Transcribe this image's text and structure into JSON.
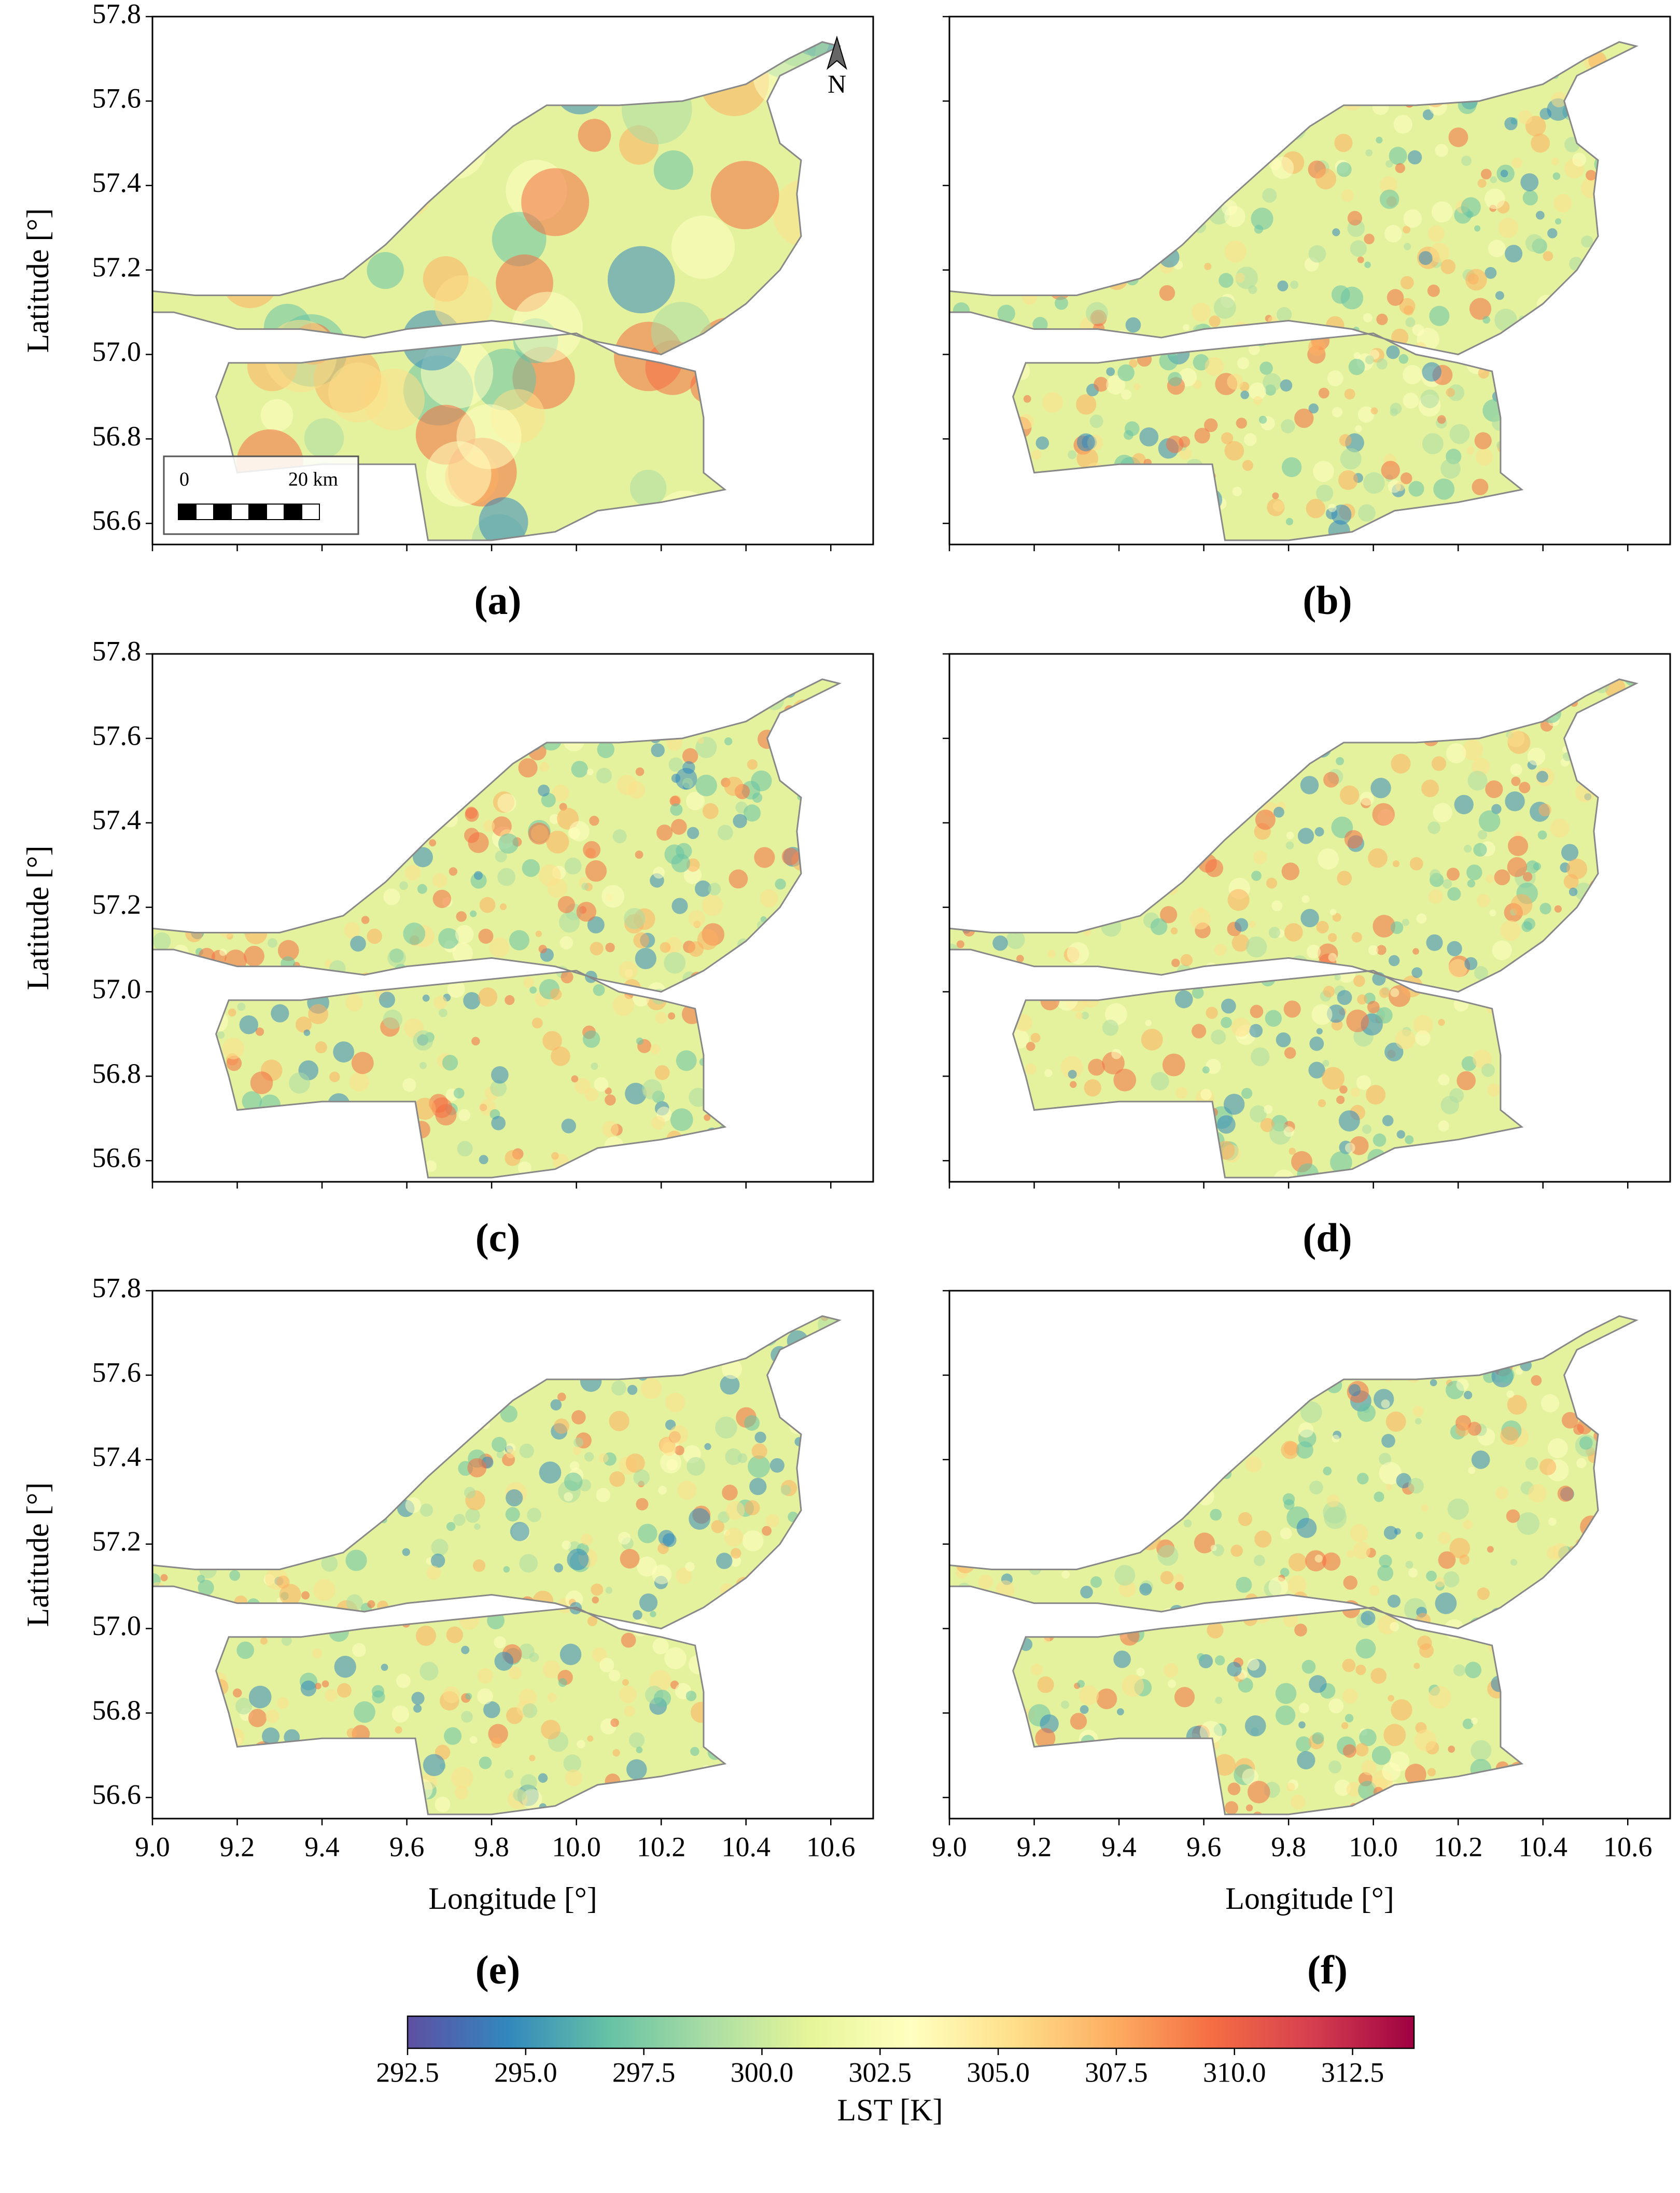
{
  "chart_data": [
    {
      "type": "map",
      "panel_label": "(a)",
      "xlim": [
        9.0,
        10.7
      ],
      "ylim": [
        56.55,
        57.8
      ],
      "xticks": [
        9.0,
        9.2,
        9.4,
        9.6,
        9.8,
        10.0,
        10.2,
        10.4,
        10.6
      ],
      "yticks": [
        {
          "value": 56.6,
          "label": "56.6"
        },
        {
          "value": 56.8,
          "label": "56.8"
        },
        {
          "value": 57.0,
          "label": "57.0"
        },
        {
          "value": 57.2,
          "label": "57.2"
        },
        {
          "value": 57.4,
          "label": "57.4"
        },
        {
          "value": 57.6,
          "label": "57.6"
        },
        {
          "value": 57.8,
          "label": "57.8"
        }
      ],
      "ylabel": "Latitude [°]",
      "scalebar_labels": [
        "0",
        "20 km"
      ],
      "north_label": "N"
    },
    {
      "type": "map",
      "panel_label": "(b)",
      "xlim": [
        9.0,
        10.7
      ],
      "ylim": [
        56.55,
        57.8
      ],
      "xticks": [
        9.0,
        9.2,
        9.4,
        9.6,
        9.8,
        10.0,
        10.2,
        10.4,
        10.6
      ],
      "yticks": [
        56.6,
        56.8,
        57.0,
        57.2,
        57.4,
        57.6,
        57.8
      ]
    },
    {
      "type": "map",
      "panel_label": "(c)",
      "xlim": [
        9.0,
        10.7
      ],
      "ylim": [
        56.55,
        57.8
      ],
      "xticks": [
        9.0,
        9.2,
        9.4,
        9.6,
        9.8,
        10.0,
        10.2,
        10.4,
        10.6
      ],
      "yticks": [
        {
          "value": 56.6,
          "label": "56.6"
        },
        {
          "value": 56.8,
          "label": "56.8"
        },
        {
          "value": 57.0,
          "label": "57.0"
        },
        {
          "value": 57.2,
          "label": "57.2"
        },
        {
          "value": 57.4,
          "label": "57.4"
        },
        {
          "value": 57.6,
          "label": "57.6"
        },
        {
          "value": 57.8,
          "label": "57.8"
        }
      ],
      "ylabel": "Latitude [°]"
    },
    {
      "type": "map",
      "panel_label": "(d)",
      "xlim": [
        9.0,
        10.7
      ],
      "ylim": [
        56.55,
        57.8
      ],
      "xticks": [
        9.0,
        9.2,
        9.4,
        9.6,
        9.8,
        10.0,
        10.2,
        10.4,
        10.6
      ],
      "yticks": [
        56.6,
        56.8,
        57.0,
        57.2,
        57.4,
        57.6,
        57.8
      ]
    },
    {
      "type": "map",
      "panel_label": "(e)",
      "xlim": [
        9.0,
        10.7
      ],
      "ylim": [
        56.55,
        57.8
      ],
      "xticks": [
        {
          "value": 9.0,
          "label": "9.0"
        },
        {
          "value": 9.2,
          "label": "9.2"
        },
        {
          "value": 9.4,
          "label": "9.4"
        },
        {
          "value": 9.6,
          "label": "9.6"
        },
        {
          "value": 9.8,
          "label": "9.8"
        },
        {
          "value": 10.0,
          "label": "10.0"
        },
        {
          "value": 10.2,
          "label": "10.2"
        },
        {
          "value": 10.4,
          "label": "10.4"
        },
        {
          "value": 10.6,
          "label": "10.6"
        }
      ],
      "yticks": [
        {
          "value": 56.6,
          "label": "56.6"
        },
        {
          "value": 56.8,
          "label": "56.8"
        },
        {
          "value": 57.0,
          "label": "57.0"
        },
        {
          "value": 57.2,
          "label": "57.2"
        },
        {
          "value": 57.4,
          "label": "57.4"
        },
        {
          "value": 57.6,
          "label": "57.6"
        },
        {
          "value": 57.8,
          "label": "57.8"
        }
      ],
      "ylabel": "Latitude [°]",
      "xlabel": "Longitude [°]"
    },
    {
      "type": "map",
      "panel_label": "(f)",
      "xlim": [
        9.0,
        10.7
      ],
      "ylim": [
        56.55,
        57.8
      ],
      "xticks": [
        {
          "value": 9.0,
          "label": "9.0"
        },
        {
          "value": 9.2,
          "label": "9.2"
        },
        {
          "value": 9.4,
          "label": "9.4"
        },
        {
          "value": 9.6,
          "label": "9.6"
        },
        {
          "value": 9.8,
          "label": "9.8"
        },
        {
          "value": 10.0,
          "label": "10.0"
        },
        {
          "value": 10.2,
          "label": "10.2"
        },
        {
          "value": 10.4,
          "label": "10.4"
        },
        {
          "value": 10.6,
          "label": "10.6"
        }
      ],
      "yticks": [
        56.6,
        56.8,
        57.0,
        57.2,
        57.4,
        57.6,
        57.8
      ],
      "xlabel": "Longitude [°]"
    },
    {
      "type": "colorbar",
      "xlim": [
        292.5,
        313.8
      ],
      "xticks": [
        292.5,
        {
          "value": 295,
          "label": "295.0"
        },
        297.5,
        {
          "value": 300,
          "label": "300.0"
        },
        302.5,
        {
          "value": 305,
          "label": "305.0"
        },
        307.5,
        {
          "value": 310,
          "label": "310.0"
        },
        312.5
      ],
      "xlabel": "LST [K]",
      "colors": [
        "#5e4fa2",
        "#3288bd",
        "#66c2a5",
        "#abdda4",
        "#e6f598",
        "#ffffbf",
        "#fee08b",
        "#fdae61",
        "#f46d43",
        "#d53e4f",
        "#9e0142"
      ]
    }
  ]
}
